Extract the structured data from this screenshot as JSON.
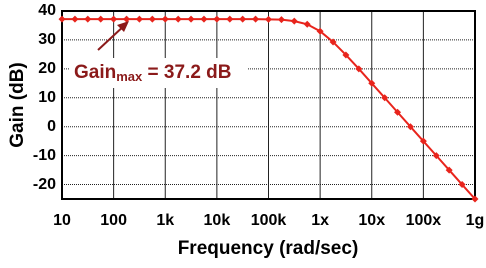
{
  "chart_data": {
    "type": "line",
    "x_label": "Frequency (rad/sec)",
    "y_label": "Gain (dB)",
    "annotation": {
      "text": "Gain",
      "subscript": "max",
      "rest": " = 37.2 dB"
    },
    "x": [
      10,
      17.8,
      31.6,
      56.2,
      100,
      178,
      316,
      562,
      1000,
      1780,
      3160,
      5620,
      10000,
      17800,
      31600,
      56200,
      100000,
      178000,
      316000,
      562000,
      1000000,
      1780000,
      3160000,
      5620000,
      10000000,
      17800000,
      31600000,
      56200000,
      100000000,
      178000000,
      316000000,
      562000000,
      1000000000
    ],
    "values": [
      37.2,
      37.2,
      37.2,
      37.2,
      37.2,
      37.2,
      37.2,
      37.2,
      37.2,
      37.2,
      37.2,
      37.2,
      37.2,
      37.2,
      37.2,
      37.2,
      37.1,
      37.0,
      36.5,
      35.4,
      33.0,
      29.3,
      24.8,
      20.0,
      15.0,
      10.0,
      5.0,
      0.0,
      -5.0,
      -10.0,
      -15.0,
      -20.0,
      -25.0
    ],
    "color": "#e8241c",
    "x_log": true,
    "grid": true,
    "xlim": [
      10,
      1000000000
    ],
    "ylim": [
      -25,
      40
    ],
    "xticks": [
      10,
      100,
      {
        "value": 1000,
        "label": "1k"
      },
      {
        "value": 10000,
        "label": "10k"
      },
      {
        "value": 100000,
        "label": "100k"
      },
      {
        "value": 1000000,
        "label": "1x"
      },
      {
        "value": 10000000,
        "label": "10x"
      },
      {
        "value": 100000000,
        "label": "100x"
      },
      {
        "value": 1000000000,
        "label": "1g"
      }
    ],
    "yticks": [
      40,
      30,
      20,
      10,
      0,
      -10,
      -20
    ]
  }
}
